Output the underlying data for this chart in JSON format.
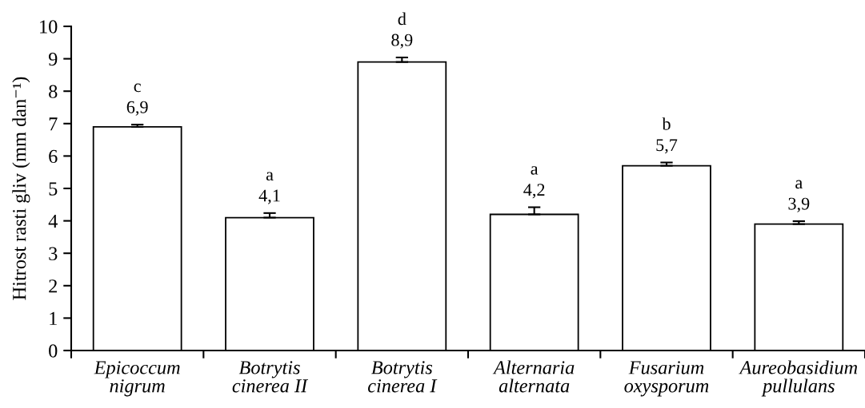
{
  "chart_data": {
    "type": "bar",
    "ylabel": "Hitrost rasti gliv (mm dan⁻¹)",
    "categories": [
      "Epicoccum\nnigrum",
      "Botrytis\ncinerea II",
      "Botrytis\ncinerea I",
      "Alternaria\nalternata",
      "Fusarium\noxysporum",
      "Aureobasidium\npullulans"
    ],
    "values": [
      6.9,
      4.1,
      8.9,
      4.2,
      5.7,
      3.9
    ],
    "color": "#ffffff",
    "errors": [
      [
        6.9,
        6.97
      ],
      [
        4.1,
        4.24
      ],
      [
        8.9,
        9.04
      ],
      [
        4.2,
        4.42
      ],
      [
        5.7,
        5.8
      ],
      [
        3.9,
        3.99
      ]
    ],
    "value_labels": [
      "6,9",
      "4,1",
      "8,9",
      "4,2",
      "5,7",
      "3,9"
    ],
    "annotations": [
      {
        "text": "c",
        "x": "Epicoccum\nnigrum",
        "y": 6.97
      },
      {
        "text": "a",
        "x": "Botrytis\ncinerea II",
        "y": 4.24
      },
      {
        "text": "d",
        "x": "Botrytis\ncinerea I",
        "y": 9.04
      },
      {
        "text": "a",
        "x": "Alternaria\nalternata",
        "y": 4.42
      },
      {
        "text": "b",
        "x": "Fusarium\noxysporum",
        "y": 5.8
      },
      {
        "text": "a",
        "x": "Aureobasidium\npullulans",
        "y": 3.99
      }
    ],
    "ylim": [
      0,
      10
    ],
    "yticks": [
      0,
      1,
      2,
      3,
      4,
      5,
      6,
      7,
      8,
      9,
      10
    ]
  }
}
